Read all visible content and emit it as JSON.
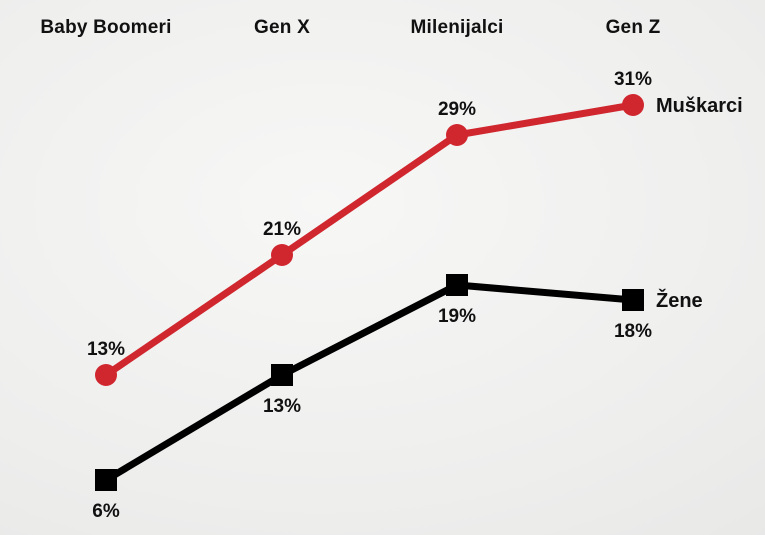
{
  "chart_data": {
    "type": "line",
    "categories": [
      "Baby Boomeri",
      "Gen X",
      "Milenijalci",
      "Gen Z"
    ],
    "series": [
      {
        "name": "Muškarci",
        "values": [
          13,
          21,
          29,
          31
        ],
        "labels": [
          "13%",
          "21%",
          "29%",
          "31%"
        ],
        "color": "#d0262e",
        "marker": "circle",
        "value_label_position": "above"
      },
      {
        "name": "Žene",
        "values": [
          6,
          13,
          19,
          18
        ],
        "labels": [
          "6%",
          "13%",
          "19%",
          "18%"
        ],
        "color": "#000000",
        "marker": "square",
        "value_label_position": "below"
      }
    ],
    "value_suffix": "%",
    "title": "",
    "xlabel": "",
    "ylabel": "",
    "ylim": [
      0,
      35
    ],
    "grid": false,
    "legend_position": "right-of-last-point",
    "background_color": "#ececeb",
    "text_color": "#111111"
  }
}
